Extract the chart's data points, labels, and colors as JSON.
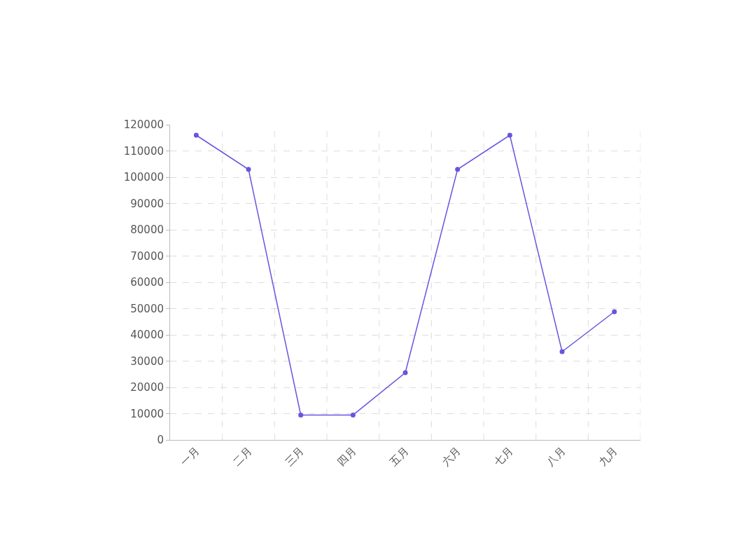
{
  "chart_data": {
    "type": "line",
    "categories": [
      "一月",
      "二月",
      "三月",
      "四月",
      "五月",
      "六月",
      "七月",
      "八月",
      "九月"
    ],
    "series": [
      {
        "color": "#6655e0",
        "values": [
          116000,
          103000,
          9500,
          9500,
          25600,
          103000,
          116000,
          33600,
          48800
        ]
      }
    ],
    "ylim": [
      0,
      120000
    ],
    "yticks": [
      0,
      10000,
      20000,
      30000,
      40000,
      50000,
      60000,
      70000,
      80000,
      90000,
      100000,
      110000,
      120000
    ],
    "grid": true,
    "marker": "circle",
    "line_style": "solid"
  }
}
